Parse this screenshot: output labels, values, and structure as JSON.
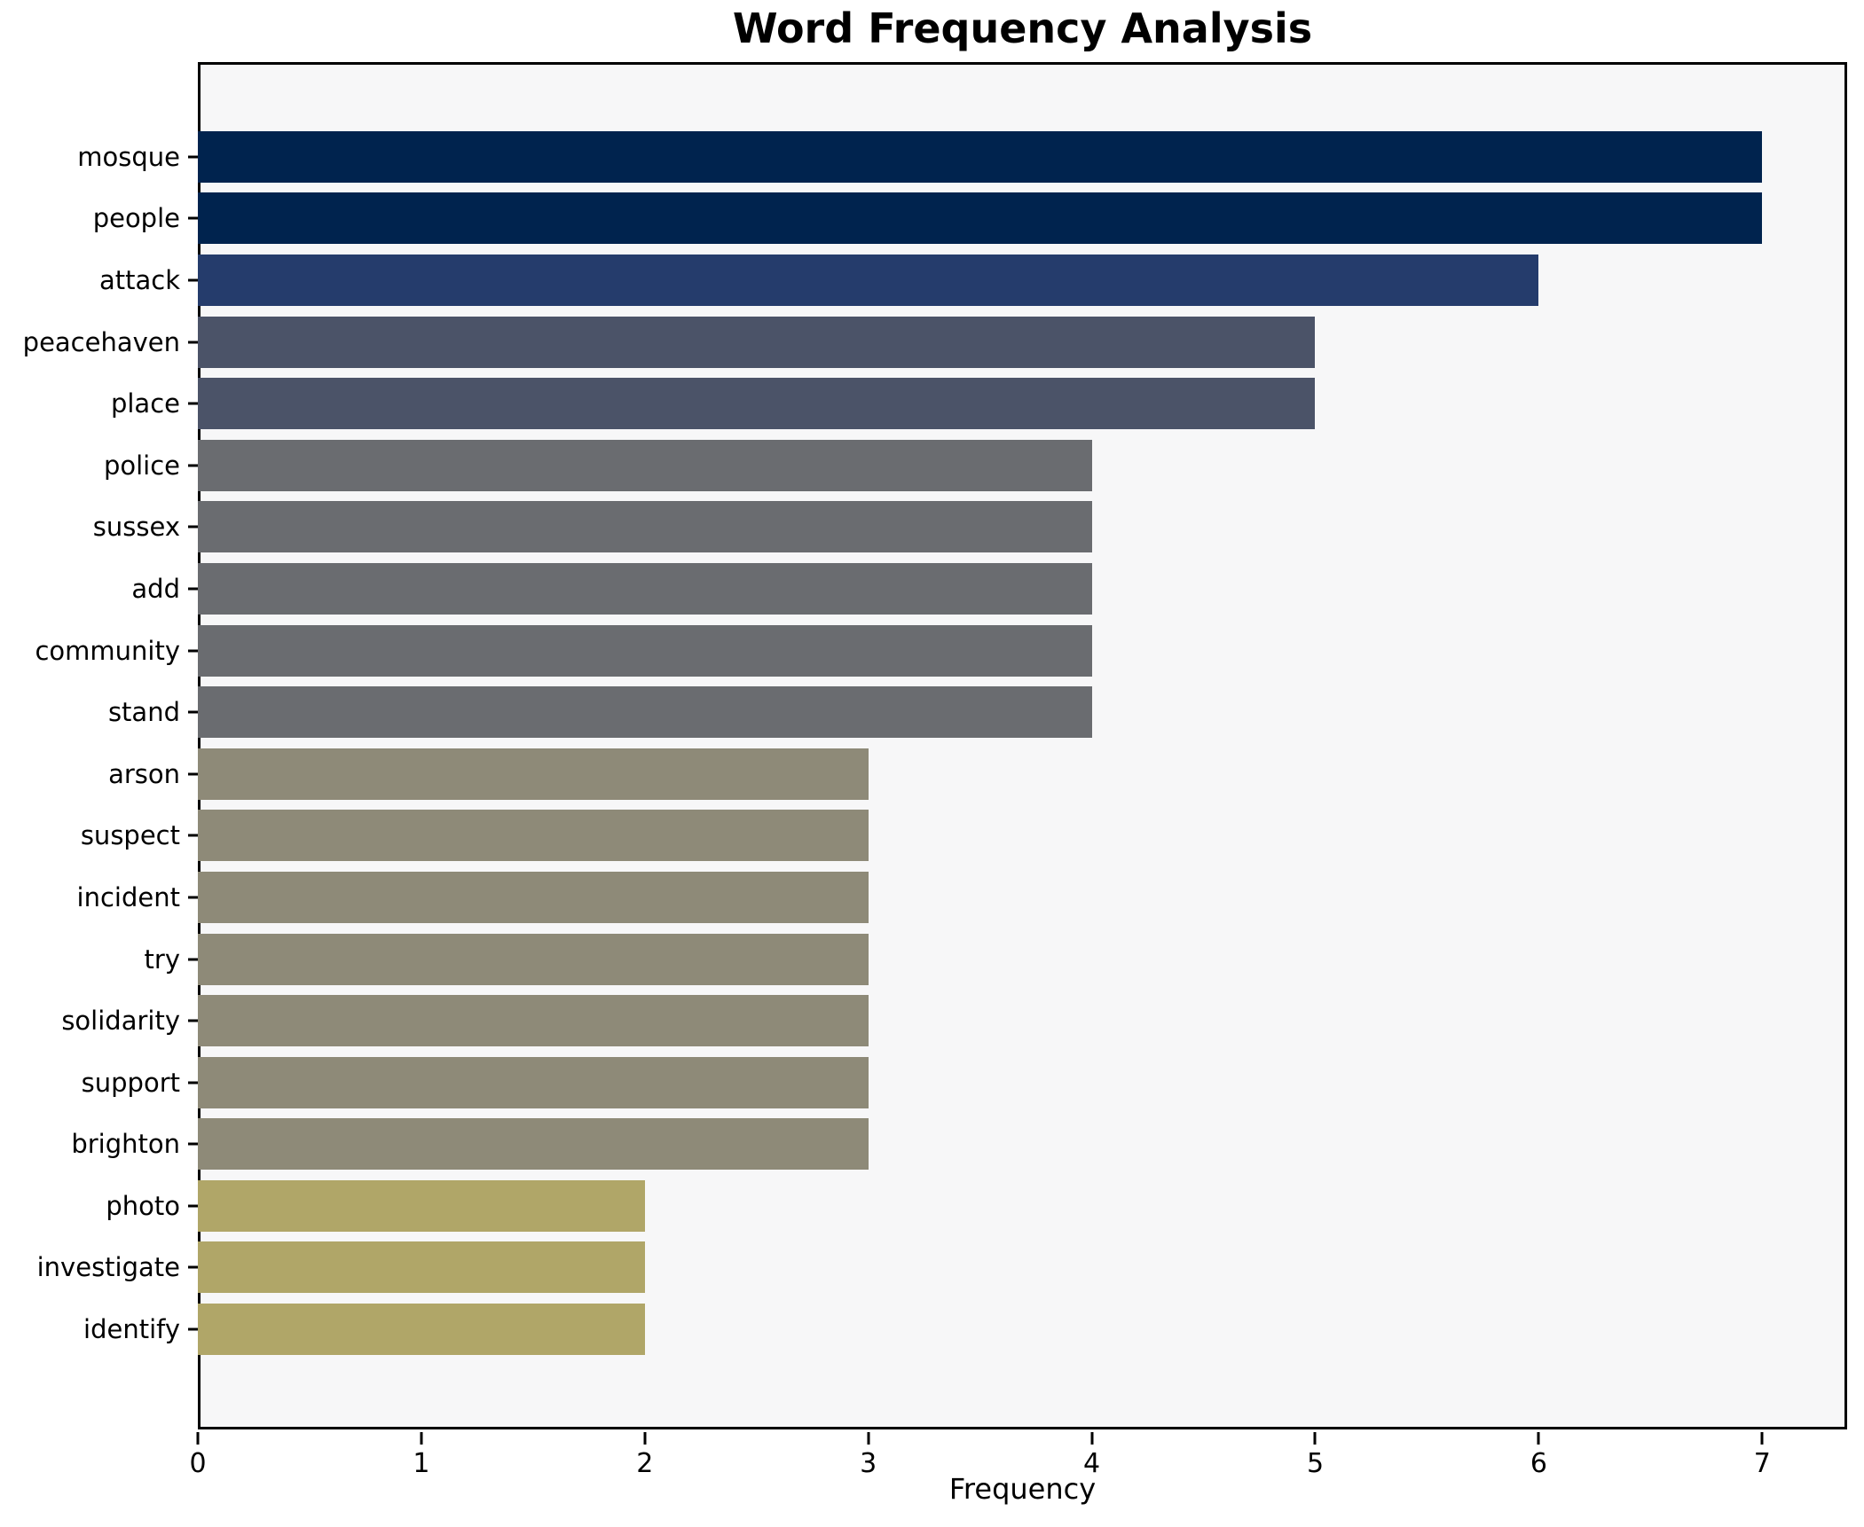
{
  "title": "Word Frequency Analysis",
  "chart_data": {
    "type": "bar",
    "orientation": "horizontal",
    "title": "Word Frequency Analysis",
    "xlabel": "Frequency",
    "ylabel": "",
    "categories": [
      "mosque",
      "people",
      "attack",
      "peacehaven",
      "place",
      "police",
      "sussex",
      "add",
      "community",
      "stand",
      "arson",
      "suspect",
      "incident",
      "try",
      "solidarity",
      "support",
      "brighton",
      "photo",
      "investigate",
      "identify"
    ],
    "values": [
      7,
      7,
      6,
      5,
      5,
      4,
      4,
      4,
      4,
      4,
      3,
      3,
      3,
      3,
      3,
      3,
      3,
      2,
      2,
      2
    ],
    "bar_colors": [
      "#00234e",
      "#00234e",
      "#253c6c",
      "#4b5368",
      "#4b5368",
      "#6a6c70",
      "#6a6c70",
      "#6a6c70",
      "#6a6c70",
      "#6a6c70",
      "#8e8a78",
      "#8e8a78",
      "#8e8a78",
      "#8e8a78",
      "#8e8a78",
      "#8e8a78",
      "#8e8a78",
      "#b0a668",
      "#b0a668",
      "#b0a668"
    ],
    "xticks": [
      0,
      1,
      2,
      3,
      4,
      5,
      6,
      7
    ],
    "xlim": [
      0,
      7.38
    ],
    "grid": "off",
    "legend": "none",
    "plot_background": "#f7f7f8",
    "figure_background": "#ffffff",
    "spine_color": "#000000"
  }
}
